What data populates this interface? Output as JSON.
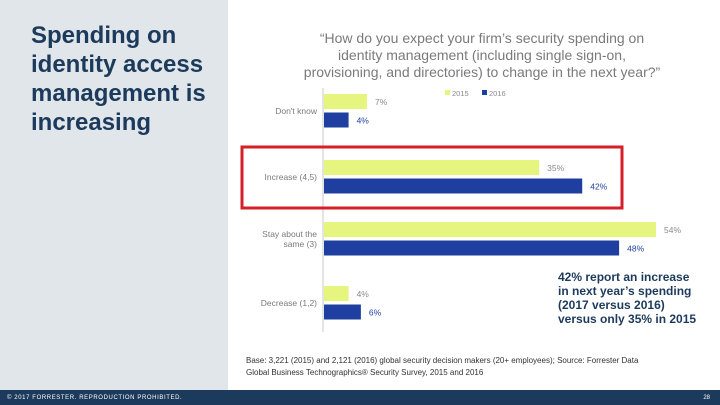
{
  "slide": {
    "title": "Spending on identity access management is increasing",
    "question_lines": [
      "“How do you expect your firm’s security spending on",
      "identity management (including single sign-on,",
      "provisioning, and directories) to change in the next year?”"
    ],
    "callout_lines": [
      "42% report an increase",
      "in next year’s spending",
      "(2017 versus 2016)",
      "versus only 35% in 2015"
    ],
    "source_lines": [
      "Base: 3,221 (2015) and 2,121 (2016) global security decision makers (20+ employees); Source: Forrester Data",
      "Global Business Technographics® Security Survey, 2015 and 2016"
    ],
    "copyright": "© 2017 FORRESTER. REPRODUCTION PROHIBITED.",
    "page_number": "28"
  },
  "colors": {
    "series_2015": "#e6f57d",
    "series_2016": "#1f3fa0",
    "highlight_box": "#d42027",
    "title": "#1b3a5c",
    "panel": "#e1e6ea"
  },
  "chart_data": {
    "type": "bar",
    "orientation": "horizontal",
    "categories": [
      "Don't know",
      "Increase (4,5)",
      "Stay about the same (3)",
      "Decrease (1,2)"
    ],
    "series": [
      {
        "name": "2015",
        "values": [
          7,
          35,
          54,
          4
        ]
      },
      {
        "name": "2016",
        "values": [
          4,
          42,
          48,
          6
        ]
      }
    ],
    "value_labels": [
      [
        "7%",
        "35%",
        "54%",
        "4%"
      ],
      [
        "4%",
        "42%",
        "48%",
        "6%"
      ]
    ],
    "unit": "%",
    "xlim": [
      0,
      54
    ],
    "grid": false,
    "legend": "top-right",
    "highlighted_category": "Increase (4,5)"
  }
}
